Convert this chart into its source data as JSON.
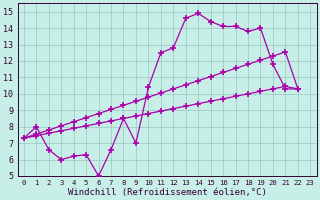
{
  "background_color": "#c8eee8",
  "grid_color": "#a0ccc8",
  "line_color": "#aa00aa",
  "marker": "+",
  "markersize": 4,
  "markeredgewidth": 1.2,
  "linewidth": 0.9,
  "xlabel": "Windchill (Refroidissement éolien,°C)",
  "xlabel_fontsize": 6.5,
  "tick_fontsize": 6,
  "xlim": [
    -0.5,
    23.5
  ],
  "ylim": [
    5,
    15.5
  ],
  "yticks": [
    5,
    6,
    7,
    8,
    9,
    10,
    11,
    12,
    13,
    14,
    15
  ],
  "xticks": [
    0,
    1,
    2,
    3,
    4,
    5,
    6,
    7,
    8,
    9,
    10,
    11,
    12,
    13,
    14,
    15,
    16,
    17,
    18,
    19,
    20,
    21,
    22,
    23
  ],
  "line1_x": [
    0,
    1,
    2,
    3,
    4,
    5,
    6,
    7,
    8,
    9,
    10,
    11,
    12,
    13,
    14,
    15,
    16,
    17,
    18,
    19,
    20,
    21,
    22,
    23
  ],
  "line1_y": [
    7.3,
    8.0,
    6.6,
    6.0,
    6.2,
    6.3,
    5.0,
    6.6,
    8.5,
    7.0,
    10.4,
    12.5,
    12.8,
    14.6,
    14.9,
    14.4,
    14.1,
    14.1,
    13.8,
    14.0,
    11.8,
    10.3,
    10.3,
    null
  ],
  "line2_x": [
    0,
    1,
    2,
    3,
    4,
    5,
    6,
    7,
    8,
    9,
    10,
    11,
    12,
    13,
    14,
    15,
    16,
    17,
    18,
    19,
    20,
    21,
    22,
    23
  ],
  "line2_y": [
    7.3,
    7.45,
    7.6,
    7.75,
    7.9,
    8.05,
    8.2,
    8.35,
    8.5,
    8.65,
    8.8,
    8.95,
    9.1,
    9.25,
    9.4,
    9.55,
    9.7,
    9.85,
    10.0,
    10.15,
    10.3,
    10.45,
    10.3,
    null
  ],
  "line3_x": [
    0,
    1,
    2,
    3,
    4,
    5,
    6,
    7,
    8,
    9,
    10,
    11,
    12,
    13,
    14,
    15,
    16,
    17,
    18,
    19,
    20,
    21,
    22,
    23
  ],
  "line3_y": [
    7.3,
    7.55,
    7.8,
    8.05,
    8.3,
    8.55,
    8.8,
    9.05,
    9.3,
    9.55,
    9.8,
    10.05,
    10.3,
    10.55,
    10.8,
    11.05,
    11.3,
    11.55,
    11.8,
    12.05,
    12.3,
    12.55,
    10.3,
    null
  ]
}
